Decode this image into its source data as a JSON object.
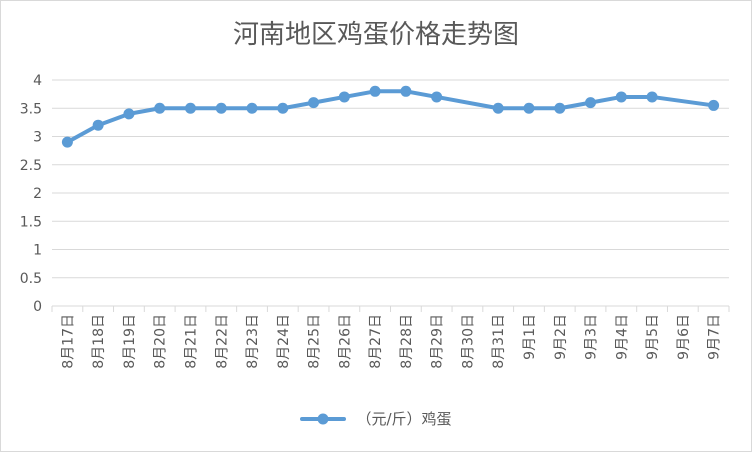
{
  "chart_data": {
    "type": "line",
    "title": "河南地区鸡蛋价格走势图",
    "categories": [
      "8月17日",
      "8月18日",
      "8月19日",
      "8月20日",
      "8月21日",
      "8月22日",
      "8月23日",
      "8月24日",
      "8月25日",
      "8月26日",
      "8月27日",
      "8月28日",
      "8月29日",
      "8月30日",
      "8月31日",
      "9月1日",
      "9月2日",
      "9月3日",
      "9月4日",
      "9月5日",
      "9月6日",
      "9月7日"
    ],
    "series": [
      {
        "name": "（元/斤）鸡蛋",
        "values": [
          2.9,
          3.2,
          3.4,
          3.5,
          3.5,
          3.5,
          3.5,
          3.5,
          3.6,
          3.7,
          3.8,
          3.8,
          3.7,
          null,
          3.5,
          3.5,
          3.5,
          3.6,
          3.7,
          3.7,
          null,
          3.55
        ]
      }
    ],
    "y_ticks": [
      "0",
      "0.5",
      "1",
      "1.5",
      "2",
      "2.5",
      "3",
      "3.5",
      "4"
    ],
    "ylim": [
      0,
      4
    ],
    "grid": true,
    "legend": "bottom",
    "xlabel": "",
    "ylabel": ""
  },
  "colors": {
    "series": "#5b9bd5",
    "grid": "#d9d9d9",
    "text": "#595959"
  }
}
